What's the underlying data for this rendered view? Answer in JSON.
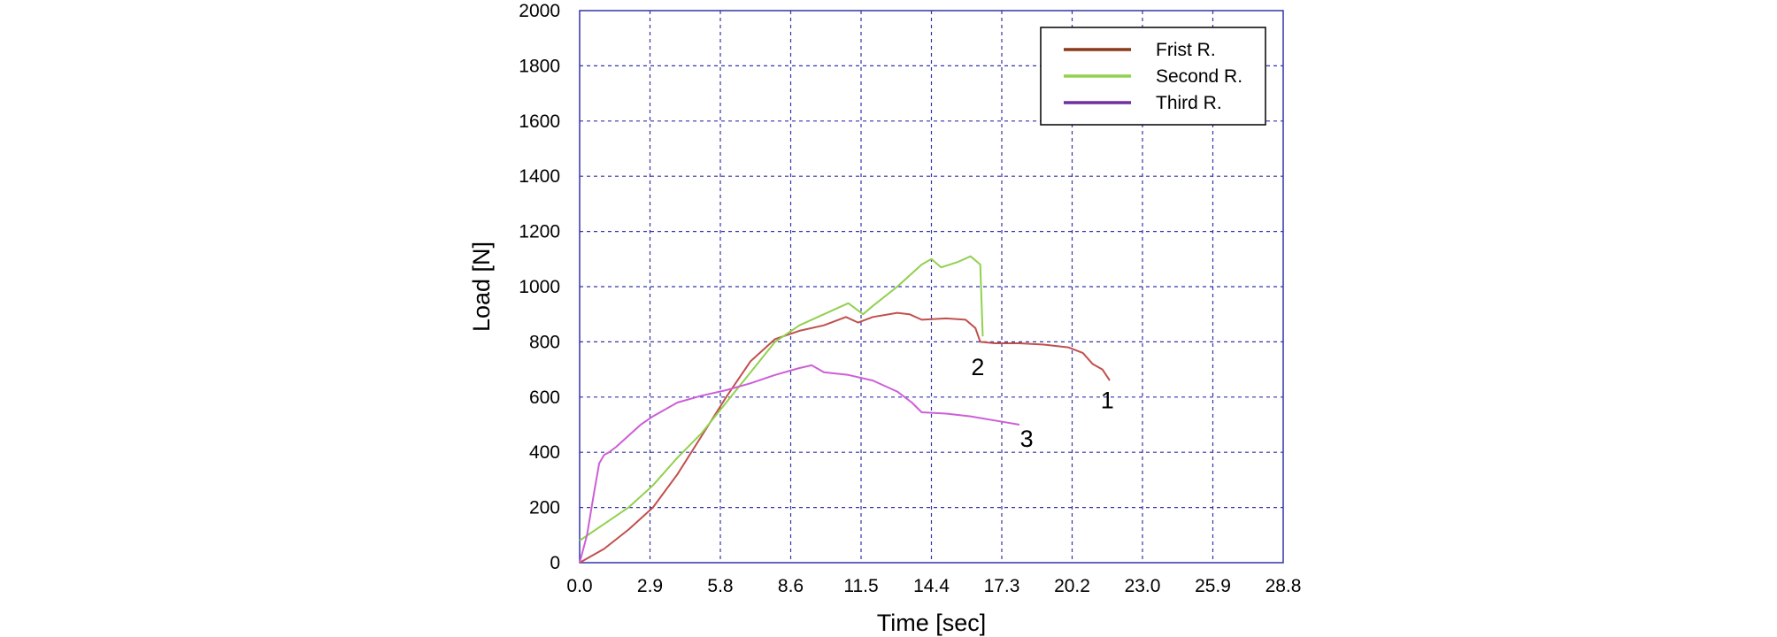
{
  "chart_data": {
    "type": "line",
    "title": "",
    "xlabel": "Time [sec]",
    "ylabel": "Load [N]",
    "xlim": [
      0,
      28.8
    ],
    "ylim": [
      0,
      2000
    ],
    "x_ticks": [
      "0.0",
      "2.9",
      "5.8",
      "8.6",
      "11.5",
      "14.4",
      "17.3",
      "20.2",
      "23.0",
      "25.9",
      "28.8"
    ],
    "y_ticks": [
      "0",
      "200",
      "400",
      "600",
      "800",
      "1000",
      "1200",
      "1400",
      "1600",
      "1800",
      "2000"
    ],
    "grid": true,
    "legend_position": "top-right",
    "series": [
      {
        "name": "Frist R.",
        "legend_color": "#8B3A1A",
        "line_color": "#C0504D",
        "x": [
          0,
          1,
          2,
          3,
          4,
          5,
          6,
          7,
          8,
          9,
          10,
          10.9,
          11.4,
          12,
          13,
          13.5,
          14,
          15,
          15.8,
          16.2,
          16.4,
          17,
          18,
          19,
          20,
          20.6,
          21,
          21.4,
          21.7
        ],
        "y": [
          0,
          50,
          120,
          200,
          320,
          460,
          600,
          730,
          810,
          840,
          860,
          890,
          870,
          890,
          905,
          900,
          880,
          885,
          880,
          850,
          800,
          795,
          795,
          790,
          780,
          760,
          720,
          700,
          660
        ]
      },
      {
        "name": "Second R.",
        "legend_color": "#92D050",
        "line_color": "#92D050",
        "x": [
          0,
          1,
          2,
          3,
          4,
          5,
          6,
          7,
          8,
          9,
          10,
          11,
          11.6,
          12,
          13,
          14,
          14.4,
          14.8,
          15.5,
          16,
          16.4,
          16.5
        ],
        "y": [
          80,
          140,
          200,
          280,
          380,
          470,
          580,
          690,
          800,
          860,
          900,
          940,
          900,
          930,
          1000,
          1080,
          1100,
          1070,
          1090,
          1110,
          1080,
          820
        ]
      },
      {
        "name": "Third R.",
        "legend_color": "#7030A0",
        "line_color": "#CC5FD6",
        "x": [
          0,
          0.3,
          0.6,
          0.8,
          1,
          1.2,
          1.5,
          2,
          2.5,
          3,
          4,
          5,
          6,
          7,
          8,
          9,
          9.5,
          10,
          11,
          12,
          13,
          13.6,
          14,
          15,
          16,
          17,
          18
        ],
        "y": [
          0,
          100,
          260,
          360,
          390,
          400,
          420,
          460,
          500,
          530,
          580,
          605,
          625,
          650,
          680,
          705,
          715,
          690,
          680,
          660,
          620,
          580,
          545,
          540,
          530,
          515,
          500
        ]
      }
    ],
    "annotations": [
      {
        "text": "1",
        "x": 21.6,
        "y": 560
      },
      {
        "text": "2",
        "x": 16.3,
        "y": 680
      },
      {
        "text": "3",
        "x": 18.3,
        "y": 420
      }
    ]
  }
}
